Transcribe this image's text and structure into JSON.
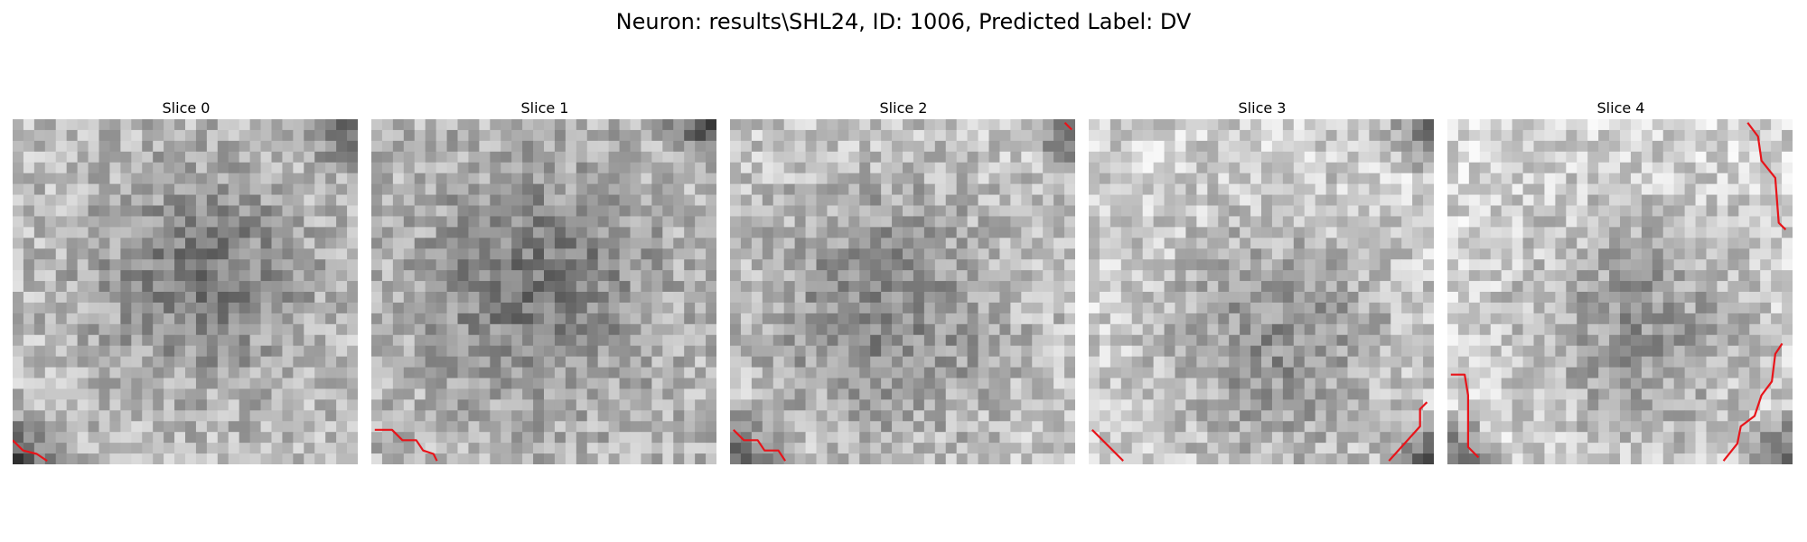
{
  "figure": {
    "title": "Neuron: results\\SHL24, ID: 1006, Predicted Label: DV"
  },
  "grid_size": 32,
  "contour_color": "#e8141a",
  "slices": [
    {
      "title": "Slice 0",
      "mean_brightness": 0.62,
      "dark_corners": [
        "top-right",
        "bottom-left"
      ],
      "contour_count": 1
    },
    {
      "title": "Slice 1",
      "mean_brightness": 0.6,
      "dark_corners": [
        "top-right"
      ],
      "contour_count": 1
    },
    {
      "title": "Slice 2",
      "mean_brightness": 0.66,
      "dark_corners": [
        "top-right",
        "bottom-left"
      ],
      "contour_count": 2
    },
    {
      "title": "Slice 3",
      "mean_brightness": 0.7,
      "dark_corners": [
        "top-right",
        "bottom-right"
      ],
      "contour_count": 2
    },
    {
      "title": "Slice 4",
      "mean_brightness": 0.72,
      "dark_corners": [
        "bottom-left",
        "bottom-right"
      ],
      "contour_count": 3
    }
  ]
}
